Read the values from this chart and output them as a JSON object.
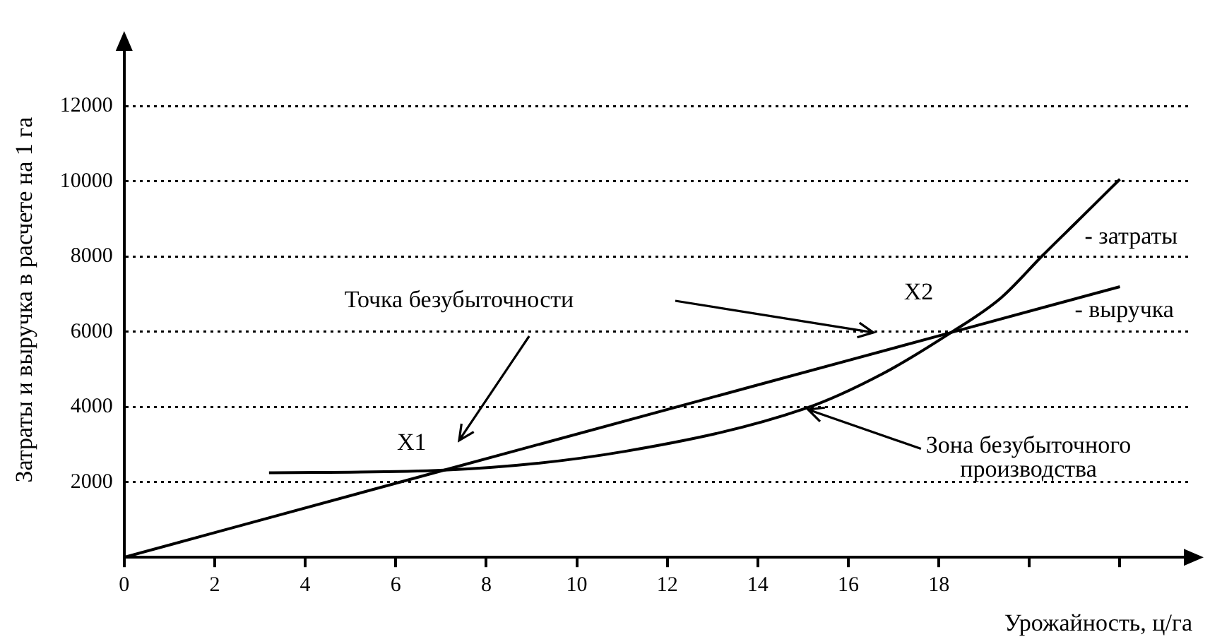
{
  "chart_data": {
    "type": "line",
    "xlabel": "Урожайность, ц/га",
    "ylabel": "Затраты и выручка в расчете на 1 га",
    "xlim": [
      0,
      23.6
    ],
    "ylim": [
      0,
      13700
    ],
    "xticks": [
      0,
      2,
      4,
      6,
      8,
      10,
      12,
      14,
      16,
      18,
      {
        "value": 20,
        "label": null
      },
      {
        "value": 22,
        "label": null
      }
    ],
    "yticks": [
      2000,
      4000,
      6000,
      8000,
      10000,
      12000
    ],
    "grid": "y",
    "legend": false,
    "marker": "none",
    "line_style": "solid",
    "series": [
      {
        "name": "- затраты",
        "color": "#000000",
        "x": [
          3.2,
          7.07,
          11.07,
          15.05,
          16.75,
          18.27,
          19.37,
          20.3,
          21.17,
          22
        ],
        "values": [
          2250,
          2320,
          2820,
          3960,
          4880,
          5980,
          6900,
          8040,
          9070,
          10060
        ]
      },
      {
        "name": "- выручка",
        "color": "#000000",
        "x": [
          0,
          7.07,
          18.27,
          22
        ],
        "values": [
          0,
          2320,
          5980,
          7200
        ]
      }
    ],
    "annotations": [
      "Точка безубыточности",
      {
        "text": "X1",
        "x": 7.07,
        "y": 2320
      },
      {
        "text": "X2",
        "x": 18.27,
        "y": 5980
      },
      {
        "text": "Зона безубыточного производства",
        "x": 15.05,
        "y": 3960
      }
    ]
  }
}
